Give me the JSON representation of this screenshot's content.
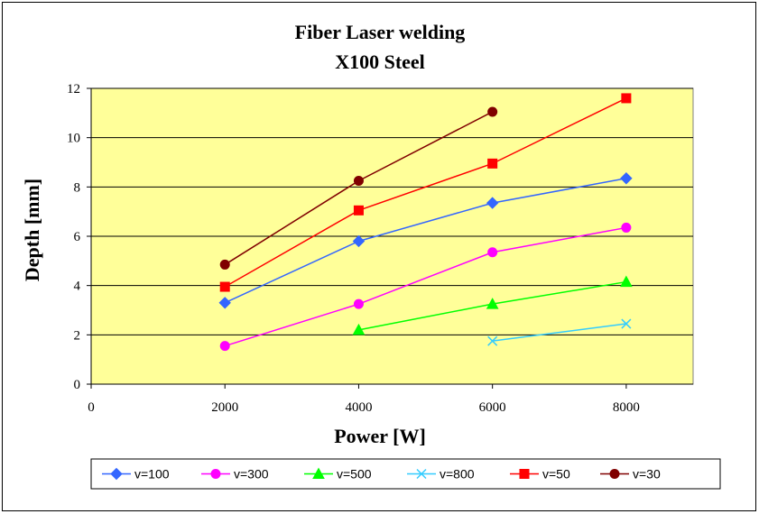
{
  "chart_data": {
    "type": "line",
    "title": "Fiber Laser welding",
    "subtitle": "X100 Steel",
    "xlabel": "Power [W]",
    "ylabel": "Depth [mm]",
    "xlim": [
      0,
      9000
    ],
    "ylim": [
      0,
      12
    ],
    "xticks": [
      0,
      2000,
      4000,
      6000,
      8000
    ],
    "yticks": [
      0,
      2,
      4,
      6,
      8,
      10,
      12
    ],
    "x_tick_labels": [
      "0",
      "2000",
      "4000",
      "6000",
      "8000"
    ],
    "y_tick_labels": [
      "0",
      "2",
      "4",
      "6",
      "8",
      "10",
      "12"
    ],
    "grid": "horizontal",
    "plot_background": "#ffff99",
    "legend_position": "bottom",
    "series": [
      {
        "name": "v=100",
        "color": "#3366ff",
        "marker": "diamond",
        "points": [
          [
            2000,
            3.3
          ],
          [
            4000,
            5.8
          ],
          [
            6000,
            7.35
          ],
          [
            8000,
            8.35
          ]
        ]
      },
      {
        "name": "v=300",
        "color": "#ff00ff",
        "marker": "circle",
        "points": [
          [
            2000,
            1.55
          ],
          [
            4000,
            3.25
          ],
          [
            6000,
            5.35
          ],
          [
            8000,
            6.35
          ]
        ]
      },
      {
        "name": "v=500",
        "color": "#00ff00",
        "marker": "triangle",
        "points": [
          [
            4000,
            2.2
          ],
          [
            6000,
            3.25
          ],
          [
            8000,
            4.15
          ]
        ]
      },
      {
        "name": "v=800",
        "color": "#33ccff",
        "marker": "x",
        "points": [
          [
            6000,
            1.75
          ],
          [
            8000,
            2.45
          ]
        ]
      },
      {
        "name": "v=50",
        "color": "#ff0000",
        "marker": "square",
        "points": [
          [
            2000,
            3.95
          ],
          [
            4000,
            7.05
          ],
          [
            6000,
            8.95
          ],
          [
            8000,
            11.6
          ]
        ]
      },
      {
        "name": "v=30",
        "color": "#800000",
        "marker": "circle",
        "points": [
          [
            2000,
            4.85
          ],
          [
            4000,
            8.25
          ],
          [
            6000,
            11.05
          ]
        ]
      }
    ]
  }
}
